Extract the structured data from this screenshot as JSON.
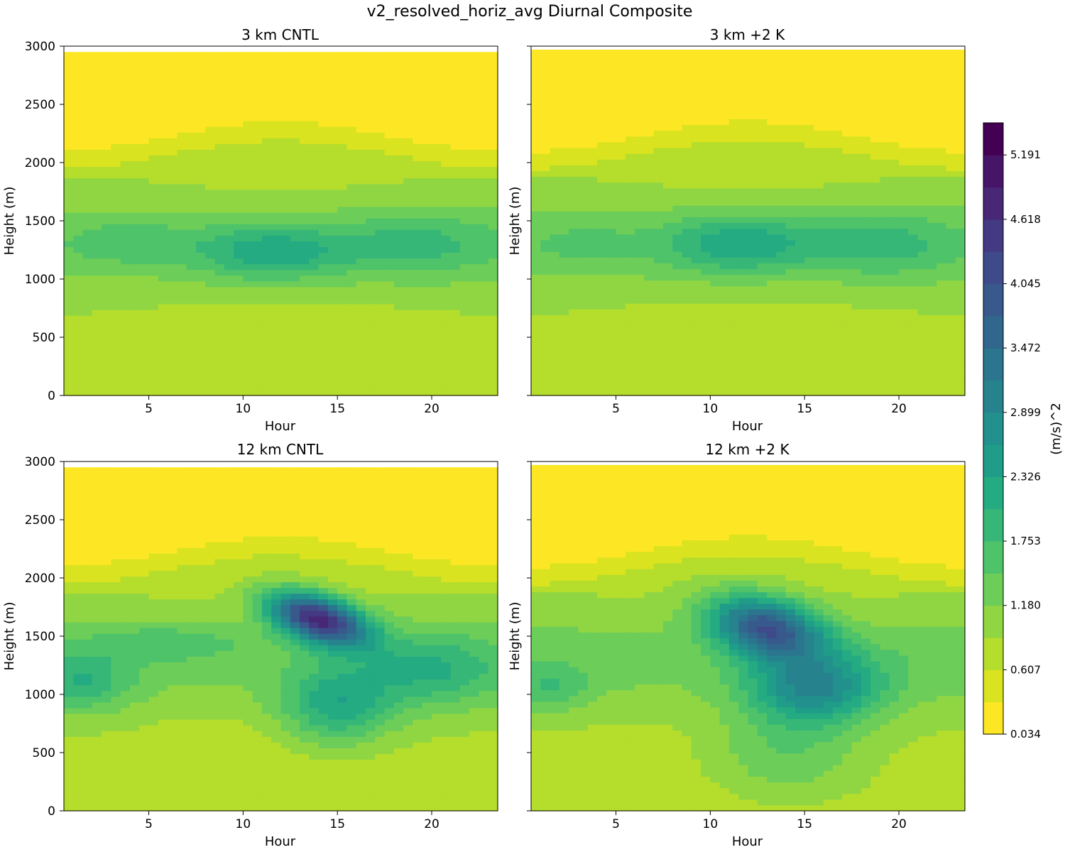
{
  "figure_title": "v2_resolved_horiz_avg Diurnal Composite",
  "colormap": [
    "#fde725",
    "#cde11d",
    "#98d83e",
    "#67cc5c",
    "#40bd72",
    "#25ac82",
    "#1f998a",
    "#24878e",
    "#2b748e",
    "#34618d",
    "#3d4d8a",
    "#453581",
    "#481c6e",
    "#440154"
  ],
  "chart_data": [
    {
      "type": "heatmap",
      "title": "3 km CNTL",
      "xlabel": "Hour",
      "ylabel": "Height (m)",
      "xlim": [
        0.5,
        23.5
      ],
      "ylim": [
        0,
        3000
      ],
      "xticks": [
        5,
        10,
        15,
        20
      ],
      "yticks": [
        0,
        500,
        1000,
        1500,
        2000,
        2500,
        3000
      ],
      "data_top": 2950,
      "features": [
        {
          "x": 11.5,
          "y": 1230,
          "sx": 4.0,
          "sy": 240,
          "amp": 1.05,
          "tilt": 0
        },
        {
          "x": 19.0,
          "y": 1300,
          "sx": 4.0,
          "sy": 260,
          "amp": 0.6,
          "tilt": 0
        },
        {
          "x": 4.0,
          "y": 1320,
          "sx": 3.0,
          "sy": 180,
          "amp": 0.4,
          "tilt": 0
        }
      ]
    },
    {
      "type": "heatmap",
      "title": "3 km +2 K",
      "xlabel": "Hour",
      "ylabel": "Height (m)",
      "xlim": [
        0.5,
        23.5
      ],
      "ylim": [
        0,
        3000
      ],
      "xticks": [
        5,
        10,
        15,
        20
      ],
      "yticks": [
        0,
        500,
        1000,
        1500,
        2000,
        2500,
        3000
      ],
      "data_top": 2970,
      "features": [
        {
          "x": 11.5,
          "y": 1300,
          "sx": 4.0,
          "sy": 250,
          "amp": 1.05,
          "tilt": 0
        },
        {
          "x": 19.0,
          "y": 1300,
          "sx": 4.0,
          "sy": 270,
          "amp": 0.6,
          "tilt": 0
        },
        {
          "x": 3.5,
          "y": 1300,
          "sx": 2.5,
          "sy": 160,
          "amp": 0.3,
          "tilt": 0
        }
      ]
    },
    {
      "type": "heatmap",
      "title": "12 km CNTL",
      "xlabel": "Hour",
      "ylabel": "Height (m)",
      "xlim": [
        0.5,
        23.5
      ],
      "ylim": [
        0,
        3000
      ],
      "xticks": [
        5,
        10,
        15,
        20
      ],
      "yticks": [
        0,
        500,
        1000,
        1500,
        2000,
        2500,
        3000
      ],
      "data_top": 2950,
      "features": [
        {
          "x": 14.0,
          "y": 1650,
          "sx": 2.6,
          "sy": 200,
          "amp": 3.8,
          "tilt": -40
        },
        {
          "x": 15.0,
          "y": 900,
          "sx": 3.0,
          "sy": 330,
          "amp": 1.3,
          "tilt": 0
        },
        {
          "x": 20.0,
          "y": 1200,
          "sx": 3.5,
          "sy": 300,
          "amp": 0.8,
          "tilt": 0
        },
        {
          "x": 1.5,
          "y": 1100,
          "sx": 2.5,
          "sy": 250,
          "amp": 0.8,
          "tilt": 0
        },
        {
          "x": 6.0,
          "y": 1450,
          "sx": 4.0,
          "sy": 150,
          "amp": 0.5,
          "tilt": 0
        }
      ]
    },
    {
      "type": "heatmap",
      "title": "12 km +2 K",
      "xlabel": "Hour",
      "ylabel": "Height (m)",
      "xlim": [
        0.5,
        23.5
      ],
      "ylim": [
        0,
        3000
      ],
      "xticks": [
        5,
        10,
        15,
        20
      ],
      "yticks": [
        0,
        500,
        1000,
        1500,
        2000,
        2500,
        3000
      ],
      "data_top": 2970,
      "features": [
        {
          "x": 13.0,
          "y": 1580,
          "sx": 3.0,
          "sy": 260,
          "amp": 3.0,
          "tilt": -30
        },
        {
          "x": 15.5,
          "y": 1050,
          "sx": 3.5,
          "sy": 300,
          "amp": 1.8,
          "tilt": 0
        },
        {
          "x": 14.0,
          "y": 500,
          "sx": 4.0,
          "sy": 400,
          "amp": 0.7,
          "tilt": 0
        },
        {
          "x": 1.5,
          "y": 1050,
          "sx": 2.0,
          "sy": 200,
          "amp": 0.6,
          "tilt": 0
        }
      ]
    }
  ],
  "colorbar": {
    "label": "(m/s)^2",
    "min": 0.034,
    "max": 5.477,
    "ticks": [
      "0.034",
      "0.607",
      "1.180",
      "1.753",
      "2.326",
      "2.899",
      "3.472",
      "4.045",
      "4.618",
      "5.191"
    ],
    "levels": 19
  }
}
